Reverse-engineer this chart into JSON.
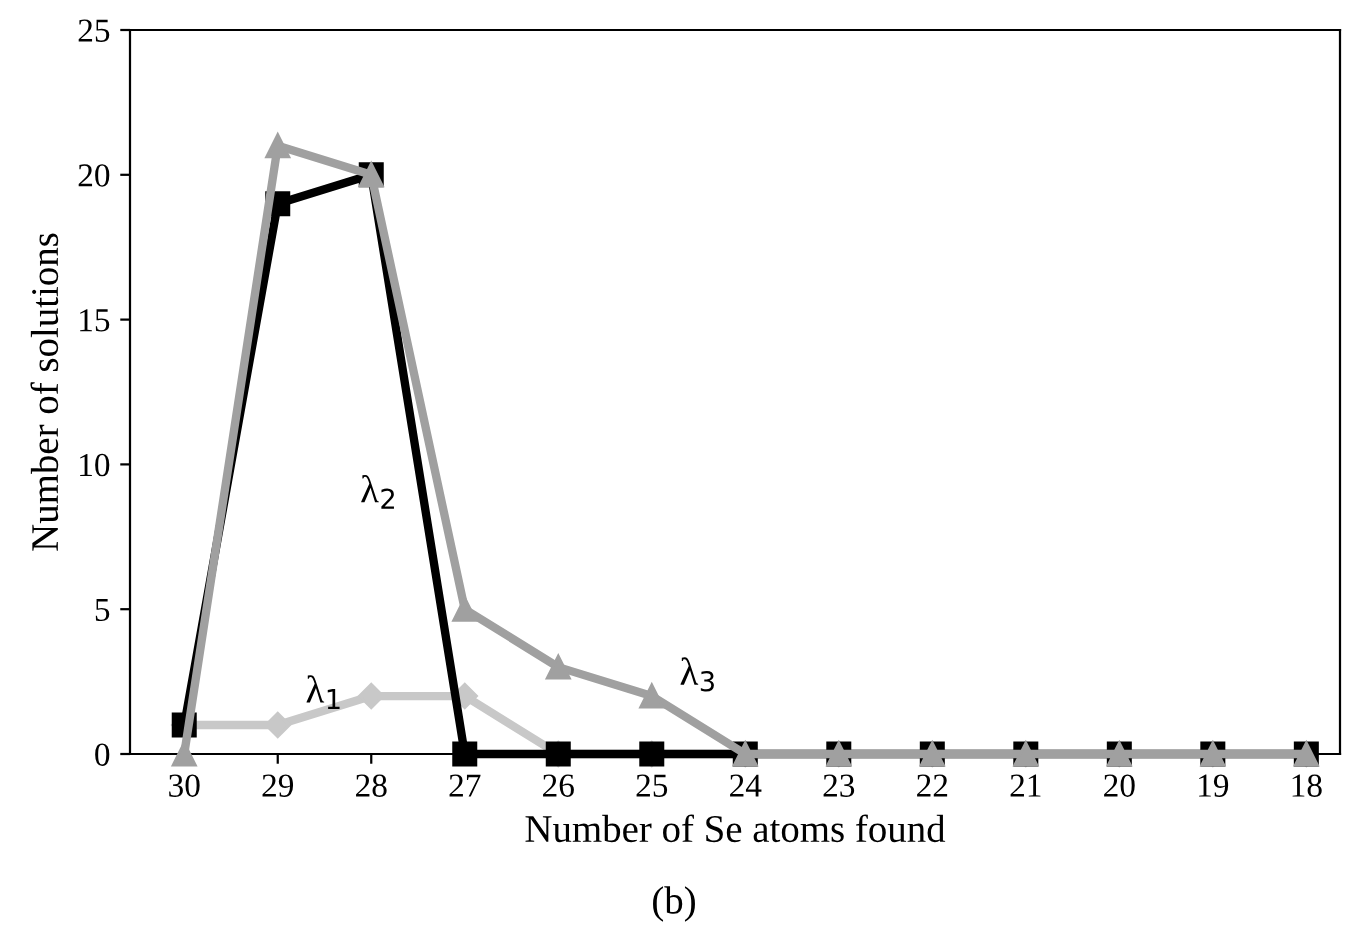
{
  "chart_data": {
    "type": "line",
    "xlabel": "Number of Se atoms found",
    "ylabel": "Number of solutions",
    "categories": [
      "30",
      "29",
      "28",
      "27",
      "26",
      "25",
      "24",
      "23",
      "22",
      "21",
      "20",
      "19",
      "18"
    ],
    "ylim": [
      0,
      25
    ],
    "yticks": [
      0,
      5,
      10,
      15,
      20,
      25
    ],
    "grid": false,
    "legend": false,
    "line_style": "solid",
    "series": [
      {
        "name": "λ$_{1}$",
        "color": "#c8c8c8",
        "marker": "diamond",
        "values": [
          1,
          1,
          2,
          2,
          0,
          0,
          0,
          0,
          0,
          0,
          0,
          0,
          0
        ]
      },
      {
        "name": "λ$_{2}$",
        "color": "#000000",
        "marker": "square",
        "values": [
          1,
          19,
          20,
          0,
          0,
          0,
          0,
          0,
          0,
          0,
          0,
          0,
          0
        ]
      },
      {
        "name": "λ$_{3}$",
        "color": "#a0a0a0",
        "marker": "triangle",
        "values": [
          0,
          21,
          20,
          5,
          3,
          2,
          0,
          0,
          0,
          0,
          0,
          0,
          0
        ]
      }
    ],
    "annotations": [
      "(b)"
    ]
  }
}
